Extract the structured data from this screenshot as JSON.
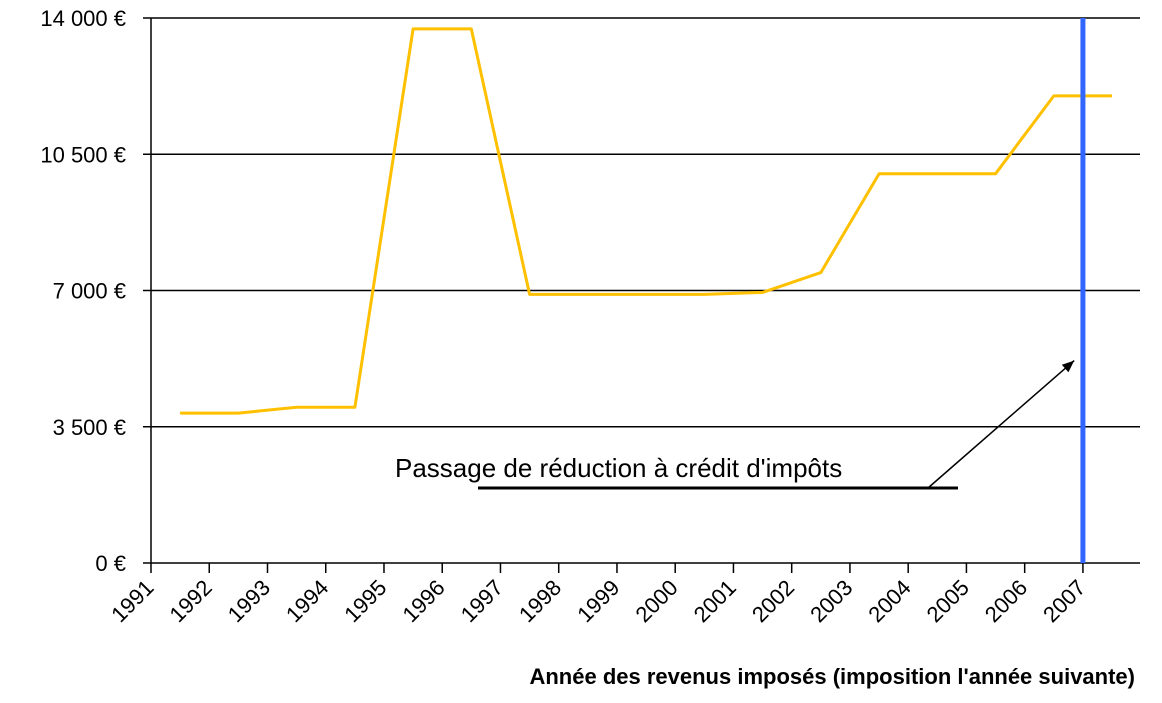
{
  "chart_data": {
    "type": "line",
    "title": "",
    "xlabel": "Année des revenus imposés (imposition l'année suivante)",
    "ylabel": "",
    "ylim": [
      0,
      14000
    ],
    "yticks": [
      0,
      3500,
      7000,
      10500,
      14000
    ],
    "ytick_labels": [
      "0 €",
      "3 500 €",
      "7 000 €",
      "10 500 €",
      "14 000 €"
    ],
    "xlim": [
      1991,
      2007.98
    ],
    "xtick_labels": [
      "1991",
      "1992",
      "1993",
      "1994",
      "1995",
      "1996",
      "1997",
      "1998",
      "1999",
      "2000",
      "2001",
      "2002",
      "2003",
      "2004",
      "2005",
      "2006",
      "2007"
    ],
    "grid": true,
    "legend": "none",
    "series": [
      {
        "color": "#ffc000",
        "points": [
          [
            1991.5,
            3850
          ],
          [
            1992.5,
            3850
          ],
          [
            1993.5,
            4000
          ],
          [
            1994.5,
            4000
          ],
          [
            1995.5,
            13720
          ],
          [
            1996.5,
            13720
          ],
          [
            1997.5,
            6900
          ],
          [
            1998.5,
            6900
          ],
          [
            1999.5,
            6900
          ],
          [
            2000.5,
            6900
          ],
          [
            2001.5,
            6950
          ],
          [
            2002.5,
            7460
          ],
          [
            2003.5,
            10000
          ],
          [
            2004.5,
            10000
          ],
          [
            2005.5,
            10000
          ],
          [
            2006.5,
            12000
          ],
          [
            2007.5,
            12000
          ]
        ]
      }
    ],
    "vertical_marker": {
      "x": 2007,
      "color": "#3366ff"
    },
    "annotation": {
      "text": "Passage de réduction à crédit d'impôts",
      "arrow_target": [
        2006.85,
        5200
      ]
    }
  }
}
